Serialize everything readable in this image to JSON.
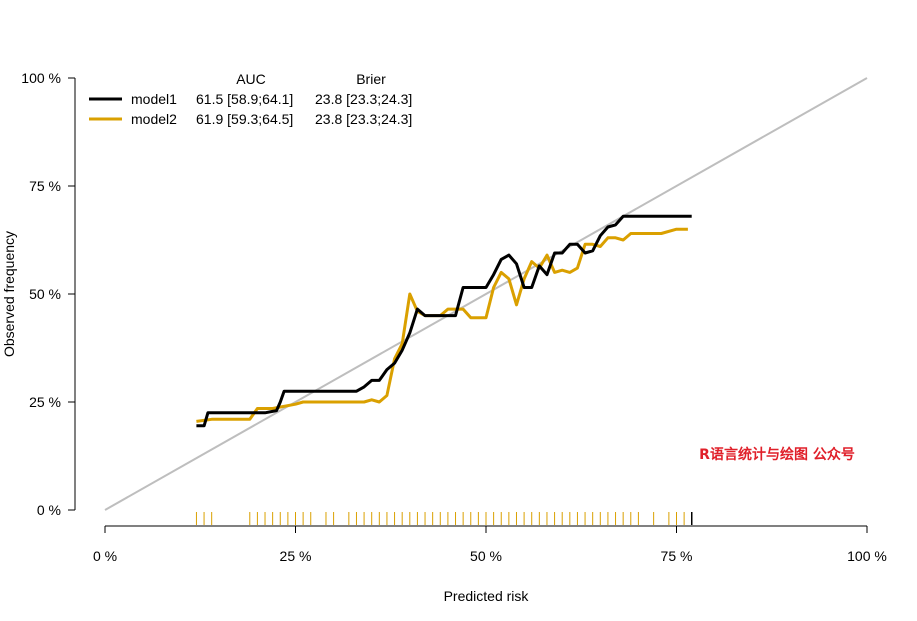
{
  "chart_data": {
    "type": "line",
    "xlabel": "Predicted risk",
    "ylabel": "Observed frequency",
    "xlim": [
      0,
      100
    ],
    "ylim": [
      0,
      100
    ],
    "x_ticks": [
      "0 %",
      "25 %",
      "50 %",
      "75 %",
      "100 %"
    ],
    "y_ticks": [
      "0 %",
      "25 %",
      "50 %",
      "75 %",
      "100 %"
    ],
    "reference_line": {
      "from": [
        0,
        0
      ],
      "to": [
        100,
        100
      ],
      "color": "#bebebe"
    },
    "legend": {
      "position": "top-left",
      "headers": [
        "AUC",
        "Brier"
      ],
      "entries": [
        {
          "name": "model1",
          "color": "#000000",
          "auc": "61.5 [58.9;64.1]",
          "brier": "23.8 [23.3;24.3]"
        },
        {
          "name": "model2",
          "color": "#daa000",
          "auc": "61.9 [59.3;64.5]",
          "brier": "23.8 [23.3;24.3]"
        }
      ]
    },
    "series": [
      {
        "name": "model1",
        "color": "#000000",
        "points": [
          [
            12,
            19.5
          ],
          [
            13,
            19.5
          ],
          [
            13.5,
            22.5
          ],
          [
            21,
            22.5
          ],
          [
            22.5,
            23
          ],
          [
            23,
            25
          ],
          [
            23.5,
            27.5
          ],
          [
            27,
            27.5
          ],
          [
            33,
            27.5
          ],
          [
            34,
            28.5
          ],
          [
            35,
            30
          ],
          [
            36,
            30
          ],
          [
            37,
            32.5
          ],
          [
            38,
            34
          ],
          [
            39,
            37
          ],
          [
            40,
            41
          ],
          [
            41,
            46.5
          ],
          [
            42,
            45
          ],
          [
            46,
            45
          ],
          [
            47,
            51.5
          ],
          [
            50,
            51.5
          ],
          [
            51,
            54.5
          ],
          [
            52,
            58
          ],
          [
            53,
            59
          ],
          [
            54,
            57
          ],
          [
            55,
            51.5
          ],
          [
            56,
            51.5
          ],
          [
            57,
            56.5
          ],
          [
            58,
            54.5
          ],
          [
            59,
            59.5
          ],
          [
            60,
            59.5
          ],
          [
            61,
            61.5
          ],
          [
            62,
            61.5
          ],
          [
            63,
            59.5
          ],
          [
            64,
            60
          ],
          [
            65,
            63.5
          ],
          [
            66,
            65.5
          ],
          [
            67,
            66
          ],
          [
            68,
            68
          ],
          [
            77,
            68
          ]
        ]
      },
      {
        "name": "model2",
        "color": "#daa000",
        "points": [
          [
            12,
            20.5
          ],
          [
            14,
            21
          ],
          [
            19,
            21
          ],
          [
            20,
            23.5
          ],
          [
            22,
            23.5
          ],
          [
            25,
            24.5
          ],
          [
            26,
            25
          ],
          [
            34,
            25
          ],
          [
            35,
            25.5
          ],
          [
            36,
            25
          ],
          [
            37,
            26.5
          ],
          [
            38,
            35
          ],
          [
            39,
            38.5
          ],
          [
            40,
            50
          ],
          [
            41,
            46
          ],
          [
            42,
            45
          ],
          [
            44,
            45
          ],
          [
            45,
            46.5
          ],
          [
            47,
            46.5
          ],
          [
            48,
            44.5
          ],
          [
            50,
            44.5
          ],
          [
            51,
            51.5
          ],
          [
            52,
            55
          ],
          [
            53,
            53.5
          ],
          [
            54,
            47.5
          ],
          [
            55,
            53.5
          ],
          [
            56,
            57.5
          ],
          [
            57,
            56
          ],
          [
            58,
            59
          ],
          [
            59,
            55
          ],
          [
            60,
            55.5
          ],
          [
            61,
            55
          ],
          [
            62,
            56
          ],
          [
            63,
            61.5
          ],
          [
            64,
            61.5
          ],
          [
            65,
            61
          ],
          [
            66,
            63
          ],
          [
            67,
            63
          ],
          [
            68,
            62.5
          ],
          [
            69,
            64
          ],
          [
            73,
            64
          ],
          [
            75,
            65
          ],
          [
            76.5,
            65
          ]
        ]
      }
    ],
    "rug": {
      "model1_color": "#000000",
      "model2_color": "#daa000",
      "model1_positions": [
        77
      ],
      "model2_positions": [
        12,
        13,
        14,
        19,
        20,
        21,
        22,
        23,
        24,
        25,
        26,
        27,
        29,
        30,
        32,
        33,
        34,
        35,
        36,
        37,
        38,
        39,
        40,
        41,
        42,
        43,
        44,
        45,
        46,
        47,
        48,
        49,
        50,
        51,
        52,
        53,
        54,
        55,
        56,
        57,
        58,
        59,
        60,
        61,
        62,
        63,
        64,
        65,
        66,
        67,
        68,
        69,
        70,
        72,
        74,
        75,
        76,
        77
      ]
    },
    "annotation": "R语言统计与绘图 公众号",
    "grid": false
  }
}
